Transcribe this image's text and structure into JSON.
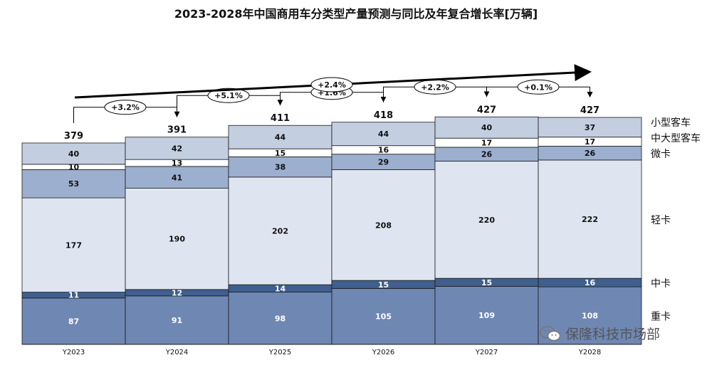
{
  "chart_data": {
    "type": "bar",
    "stacked": true,
    "title": "2023-2028年中国商用车分类型产量预测与同比及年复合增长率[万辆]",
    "categories": [
      "Y2023",
      "Y2024",
      "Y2025",
      "Y2026",
      "Y2027",
      "Y2028"
    ],
    "series": [
      {
        "name": "重卡",
        "values": [
          87,
          91,
          98,
          105,
          109,
          108
        ],
        "color": "#6f87b3",
        "label_color": "#ffffff"
      },
      {
        "name": "中卡",
        "values": [
          11,
          12,
          14,
          15,
          15,
          16
        ],
        "color": "#3f5f8f",
        "label_color": "#ffffff"
      },
      {
        "name": "轻卡",
        "values": [
          177,
          190,
          202,
          208,
          220,
          222
        ],
        "color": "#dfe5f0",
        "label_color": "#111111"
      },
      {
        "name": "微卡",
        "values": [
          53,
          41,
          38,
          29,
          26,
          26
        ],
        "color": "#9cafcf",
        "label_color": "#111111"
      },
      {
        "name": "中大型客车",
        "values": [
          10,
          13,
          15,
          16,
          17,
          17
        ],
        "color": "#ffffff",
        "label_color": "#111111"
      },
      {
        "name": "小型客车",
        "values": [
          40,
          42,
          44,
          44,
          40,
          37
        ],
        "color": "#c3cee1",
        "label_color": "#111111"
      }
    ],
    "totals": [
      379,
      391,
      411,
      418,
      427,
      427
    ],
    "yoy_growth": [
      "+3.2%",
      "+5.1%",
      "+1.6%",
      "+2.2%",
      "+0.1%"
    ],
    "cagr": "+2.4%",
    "ylim": [
      0,
      450
    ],
    "legend_position": "right"
  },
  "watermark": {
    "text": "保隆科技市场部",
    "icon": "wechat-icon"
  }
}
